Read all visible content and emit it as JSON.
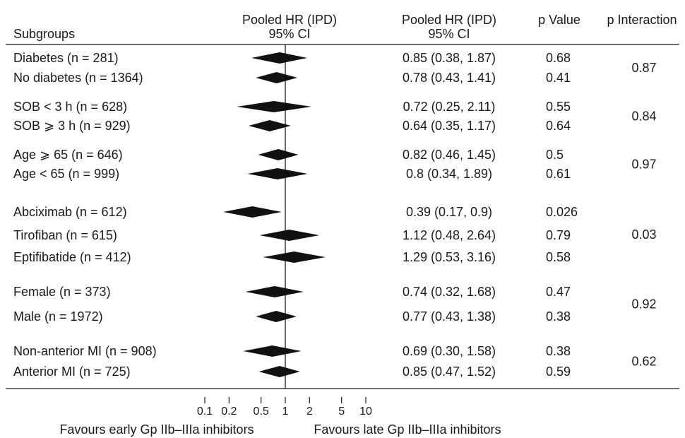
{
  "headers": {
    "subgroups": "Subgroups",
    "hr_col1_line1": "Pooled HR (IPD)",
    "hr_col1_line2": "95% CI",
    "hr_col2_line1": "Pooled HR (IPD)",
    "hr_col2_line2": "95% CI",
    "p_value": "p Value",
    "p_interaction": "p Interaction"
  },
  "favours": {
    "left": "Favours early Gp IIb–IIIa inhibitors",
    "right": "Favours late Gp IIb–IIIa inhibitors"
  },
  "chart_data": {
    "type": "forest",
    "x_scale": "log",
    "reference_line": 1,
    "xlim": [
      0.1,
      10
    ],
    "x_ticks": [
      {
        "value": 0.1,
        "label": "0.1"
      },
      {
        "value": 0.2,
        "label": "0.2"
      },
      {
        "value": 0.5,
        "label": "0.5"
      },
      {
        "value": 1,
        "label": "1"
      },
      {
        "value": 2,
        "label": "2"
      },
      {
        "value": 5,
        "label": "5"
      },
      {
        "value": 10,
        "label": "10"
      }
    ],
    "groups": [
      {
        "p_interaction": "0.87",
        "rows": [
          {
            "label": "Diabetes (n = 281)",
            "hr": 0.85,
            "lo": 0.38,
            "hi": 1.87,
            "ci_text": "0.85 (0.38, 1.87)",
            "p": "0.68"
          },
          {
            "label": "No diabetes (n = 1364)",
            "hr": 0.78,
            "lo": 0.43,
            "hi": 1.41,
            "ci_text": "0.78 (0.43, 1.41)",
            "p": "0.41"
          }
        ]
      },
      {
        "p_interaction": "0.84",
        "rows": [
          {
            "label": "SOB < 3 h (n = 628)",
            "hr": 0.72,
            "lo": 0.25,
            "hi": 2.11,
            "ci_text": "0.72 (0.25, 2.11)",
            "p": "0.55"
          },
          {
            "label": "SOB ⩾ 3 h (n = 929)",
            "hr": 0.64,
            "lo": 0.35,
            "hi": 1.17,
            "ci_text": "0.64 (0.35, 1.17)",
            "p": "0.64"
          }
        ]
      },
      {
        "p_interaction": "0.97",
        "rows": [
          {
            "label": "Age ⩾ 65 (n = 646)",
            "hr": 0.82,
            "lo": 0.46,
            "hi": 1.45,
            "ci_text": "0.82 (0.46, 1.45)",
            "p": "0.5"
          },
          {
            "label": "Age < 65 (n = 999)",
            "hr": 0.8,
            "lo": 0.34,
            "hi": 1.89,
            "ci_text": "0.8 (0.34, 1.89)",
            "p": "0.61"
          }
        ]
      },
      {
        "p_interaction": "0.03",
        "rows": [
          {
            "label": "Abciximab (n = 612)",
            "hr": 0.39,
            "lo": 0.17,
            "hi": 0.9,
            "ci_text": "0.39 (0.17, 0.9)",
            "p": "0.026"
          },
          {
            "label": "Tirofiban (n = 615)",
            "hr": 1.12,
            "lo": 0.48,
            "hi": 2.64,
            "ci_text": "1.12 (0.48, 2.64)",
            "p": "0.79"
          },
          {
            "label": "Eptifibatide (n = 412)",
            "hr": 1.29,
            "lo": 0.53,
            "hi": 3.16,
            "ci_text": "1.29 (0.53, 3.16)",
            "p": "0.58"
          }
        ]
      },
      {
        "p_interaction": "0.92",
        "rows": [
          {
            "label": "Female (n = 373)",
            "hr": 0.74,
            "lo": 0.32,
            "hi": 1.68,
            "ci_text": "0.74 (0.32, 1.68)",
            "p": "0.47"
          },
          {
            "label": "Male (n = 1972)",
            "hr": 0.77,
            "lo": 0.43,
            "hi": 1.38,
            "ci_text": "0.77 (0.43, 1.38)",
            "p": "0.38"
          }
        ]
      },
      {
        "p_interaction": "0.62",
        "rows": [
          {
            "label": "Non-anterior MI (n = 908)",
            "hr": 0.69,
            "lo": 0.3,
            "hi": 1.58,
            "ci_text": "0.69 (0.30, 1.58)",
            "p": "0.38"
          },
          {
            "label": "Anterior MI (n = 725)",
            "hr": 0.85,
            "lo": 0.47,
            "hi": 1.52,
            "ci_text": "0.85 (0.47, 1.52)",
            "p": "0.59"
          }
        ]
      }
    ]
  }
}
